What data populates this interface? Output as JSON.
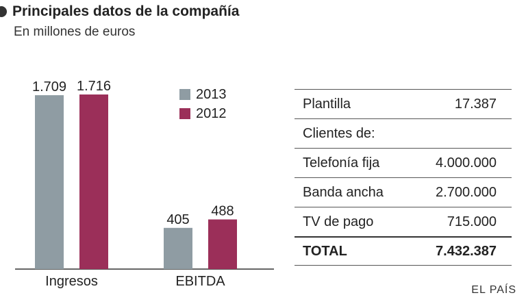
{
  "header": {
    "title": "Principales datos de la compañía",
    "subtitle": "En millones de euros"
  },
  "chart_data": {
    "type": "bar",
    "categories": [
      "Ingresos",
      "EBITDA"
    ],
    "series": [
      {
        "name": "2013",
        "color": "#8f9ca3",
        "values": [
          1709,
          405
        ],
        "labels": [
          "1.709",
          "405"
        ]
      },
      {
        "name": "2012",
        "color": "#9b2f59",
        "values": [
          1716,
          488
        ],
        "labels": [
          "1.716",
          "488"
        ]
      }
    ],
    "title": "Principales datos de la compañía",
    "subtitle": "En millones de euros",
    "xlabel": "",
    "ylabel": "",
    "ylim": [
      0,
      1716
    ],
    "legend": "top-right"
  },
  "table": {
    "rows": [
      {
        "label": "Plantilla",
        "value": "17.387"
      },
      {
        "label": "Clientes de:",
        "value": ""
      },
      {
        "label": "Telefonía fija",
        "value": "4.000.000"
      },
      {
        "label": "Banda ancha",
        "value": "2.700.000"
      },
      {
        "label": "TV de pago",
        "value": "715.000"
      }
    ],
    "total": {
      "label": "TOTAL",
      "value": "7.432.387"
    }
  },
  "source": "EL PAÍS"
}
